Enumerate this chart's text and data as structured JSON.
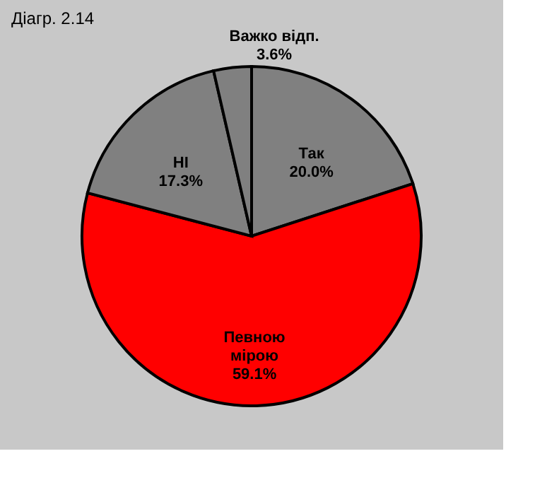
{
  "chart_data": {
    "type": "pie",
    "title": "Діагр. 2.14",
    "categories": [
      "Так",
      "Певною\nмірою",
      "НІ",
      "Важко відп."
    ],
    "values": [
      20.0,
      59.1,
      17.3,
      3.6
    ],
    "value_labels": [
      "20.0%",
      "59.1%",
      "17.3%",
      "3.6%"
    ],
    "colors": [
      "#808080",
      "#ff0000",
      "#808080",
      "#808080"
    ],
    "legend": false
  }
}
